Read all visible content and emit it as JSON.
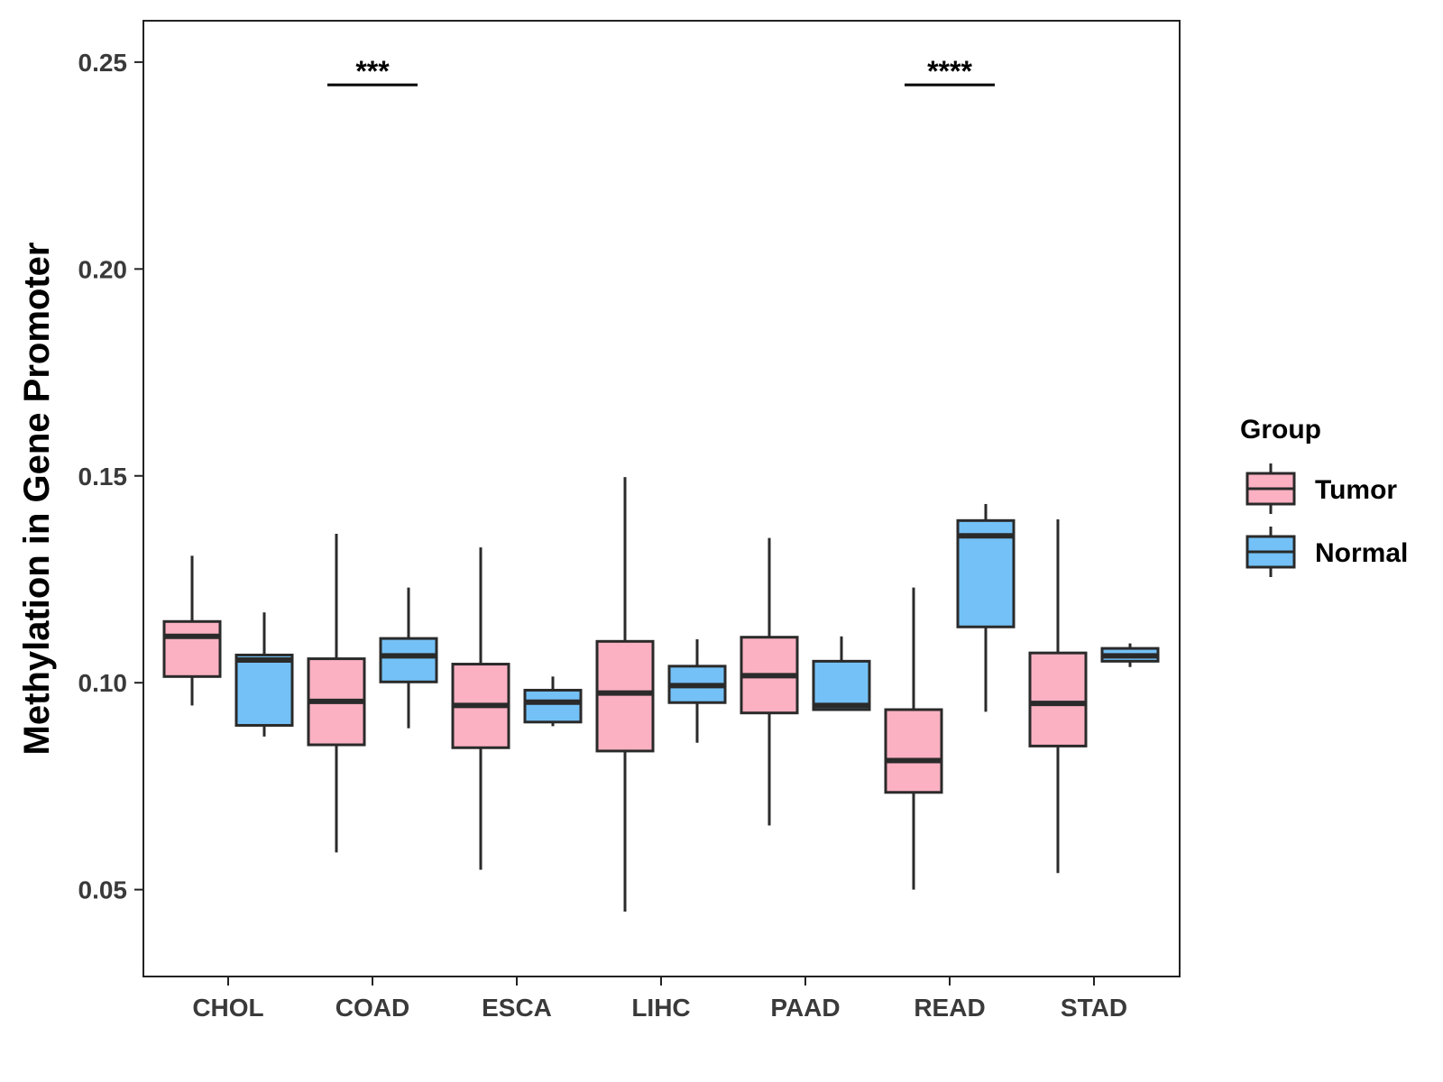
{
  "chart_data": {
    "type": "boxplot",
    "ylabel": "Methylation in Gene Promoter",
    "xlabel": "",
    "ylim": [
      0.029,
      0.26
    ],
    "yticks": [
      0.05,
      0.1,
      0.15,
      0.2,
      0.25
    ],
    "ytick_labels": [
      "0.05",
      "0.10",
      "0.15",
      "0.20",
      "0.25"
    ],
    "categories": [
      "CHOL",
      "COAD",
      "ESCA",
      "LIHC",
      "PAAD",
      "READ",
      "STAD"
    ],
    "legend": {
      "title": "Group",
      "position": "right",
      "entries": [
        {
          "name": "Tumor",
          "color": "#FBB1C2"
        },
        {
          "name": "Normal",
          "color": "#74C1F7"
        }
      ]
    },
    "series": [
      {
        "name": "Tumor",
        "color": "#FBB1C2",
        "boxes": [
          {
            "category": "CHOL",
            "whisker_low": 0.0945,
            "q1": 0.1015,
            "median": 0.1112,
            "q3": 0.1148,
            "whisker_high": 0.1307
          },
          {
            "category": "COAD",
            "whisker_low": 0.059,
            "q1": 0.085,
            "median": 0.0955,
            "q3": 0.1058,
            "whisker_high": 0.136
          },
          {
            "category": "ESCA",
            "whisker_low": 0.0548,
            "q1": 0.0843,
            "median": 0.0945,
            "q3": 0.1045,
            "whisker_high": 0.1327
          },
          {
            "category": "LIHC",
            "whisker_low": 0.0447,
            "q1": 0.0835,
            "median": 0.0975,
            "q3": 0.11,
            "whisker_high": 0.1497
          },
          {
            "category": "PAAD",
            "whisker_low": 0.0655,
            "q1": 0.0927,
            "median": 0.1017,
            "q3": 0.111,
            "whisker_high": 0.135
          },
          {
            "category": "READ",
            "whisker_low": 0.05,
            "q1": 0.0735,
            "median": 0.0812,
            "q3": 0.0935,
            "whisker_high": 0.123
          },
          {
            "category": "STAD",
            "whisker_low": 0.054,
            "q1": 0.0847,
            "median": 0.095,
            "q3": 0.1072,
            "whisker_high": 0.1395
          }
        ]
      },
      {
        "name": "Normal",
        "color": "#74C1F7",
        "boxes": [
          {
            "category": "CHOL",
            "whisker_low": 0.087,
            "q1": 0.0897,
            "median": 0.1055,
            "q3": 0.1067,
            "whisker_high": 0.117
          },
          {
            "category": "COAD",
            "whisker_low": 0.089,
            "q1": 0.1002,
            "median": 0.1065,
            "q3": 0.1107,
            "whisker_high": 0.123
          },
          {
            "category": "ESCA",
            "whisker_low": 0.0895,
            "q1": 0.0905,
            "median": 0.0953,
            "q3": 0.0982,
            "whisker_high": 0.1015
          },
          {
            "category": "LIHC",
            "whisker_low": 0.0855,
            "q1": 0.0952,
            "median": 0.0993,
            "q3": 0.104,
            "whisker_high": 0.1105
          },
          {
            "category": "PAAD",
            "whisker_low": 0.0935,
            "q1": 0.0935,
            "median": 0.0945,
            "q3": 0.1052,
            "whisker_high": 0.1112
          },
          {
            "category": "READ",
            "whisker_low": 0.093,
            "q1": 0.1135,
            "median": 0.1355,
            "q3": 0.1392,
            "whisker_high": 0.1432
          },
          {
            "category": "STAD",
            "whisker_low": 0.1038,
            "q1": 0.1052,
            "median": 0.1065,
            "q3": 0.1083,
            "whisker_high": 0.1095
          }
        ]
      }
    ],
    "annotations": [
      {
        "category": "COAD",
        "label": "***",
        "y": 0.2445
      },
      {
        "category": "READ",
        "label": "****",
        "y": 0.2445
      }
    ],
    "grid": false
  }
}
